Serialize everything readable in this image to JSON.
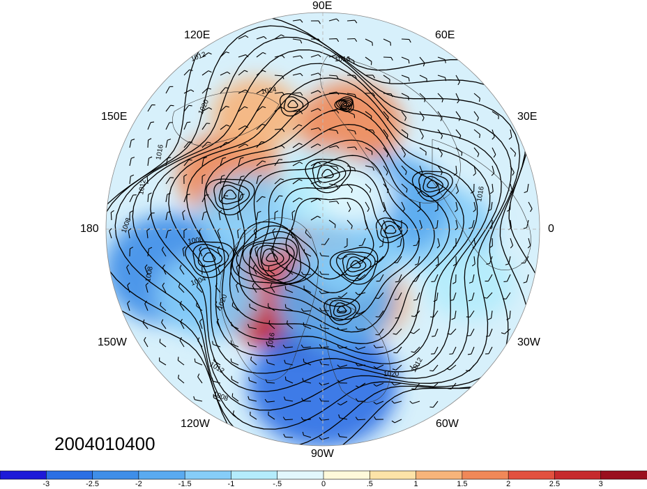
{
  "date_label": "2004010400",
  "longitude_labels": {
    "top": "90E",
    "top_left": "120E",
    "top_right": "60E",
    "upper_left": "150E",
    "upper_right": "30E",
    "left": "180",
    "right": "0",
    "lower_left": "150W",
    "lower_right": "30W",
    "bottom_left": "120W",
    "bottom_right": "60W",
    "bottom": "90W"
  },
  "contour_labels": [
    "1016",
    "1012",
    "1024",
    "1020",
    "1016",
    "1012",
    "1008",
    "1008",
    "1004",
    "1020",
    "1008",
    "1012",
    "1008",
    "1016",
    "1020",
    "1012",
    "1016"
  ],
  "colorbar": {
    "colors": [
      "#1d1ad8",
      "#2b6fe4",
      "#3f8ee8",
      "#5aaaf0",
      "#86cdf8",
      "#b4ecfc",
      "#e2f7fd",
      "#fff9da",
      "#fde3a8",
      "#f7b47a",
      "#f08858",
      "#e2513f",
      "#c62a2d",
      "#9a0f1e"
    ],
    "tick_labels": [
      "-3",
      "-2.5",
      "-2",
      "-1.5",
      "-1",
      "-.5",
      "0",
      ".5",
      "1",
      "1.5",
      "2",
      "2.5",
      "3"
    ]
  },
  "field_anomalies": [
    {
      "lon": 250,
      "lat": 62,
      "value": 3
    },
    {
      "lon": 235,
      "lat": 58,
      "value": 2.5
    },
    {
      "lon": 260,
      "lat": 70,
      "value": 2
    },
    {
      "lon": 150,
      "lat": 45,
      "value": 1.5
    },
    {
      "lon": 120,
      "lat": 35,
      "value": 1
    },
    {
      "lon": 75,
      "lat": 45,
      "value": 1.5
    },
    {
      "lon": 300,
      "lat": 55,
      "value": 1
    },
    {
      "lon": 0,
      "lat": 40,
      "value": -1.5
    },
    {
      "lon": 20,
      "lat": 60,
      "value": -2
    },
    {
      "lon": 340,
      "lat": 25,
      "value": -1
    },
    {
      "lon": 195,
      "lat": 25,
      "value": -2.5
    },
    {
      "lon": 210,
      "lat": 35,
      "value": -1.5
    },
    {
      "lon": 270,
      "lat": 25,
      "value": -3
    },
    {
      "lon": 280,
      "lat": 60,
      "value": -2
    },
    {
      "lon": 320,
      "lat": 75,
      "value": -1.5
    },
    {
      "lon": 170,
      "lat": 60,
      "value": -1.5
    },
    {
      "lon": 90,
      "lat": 72,
      "value": -1
    },
    {
      "lon": 45,
      "lat": 70,
      "value": -0.5
    }
  ]
}
